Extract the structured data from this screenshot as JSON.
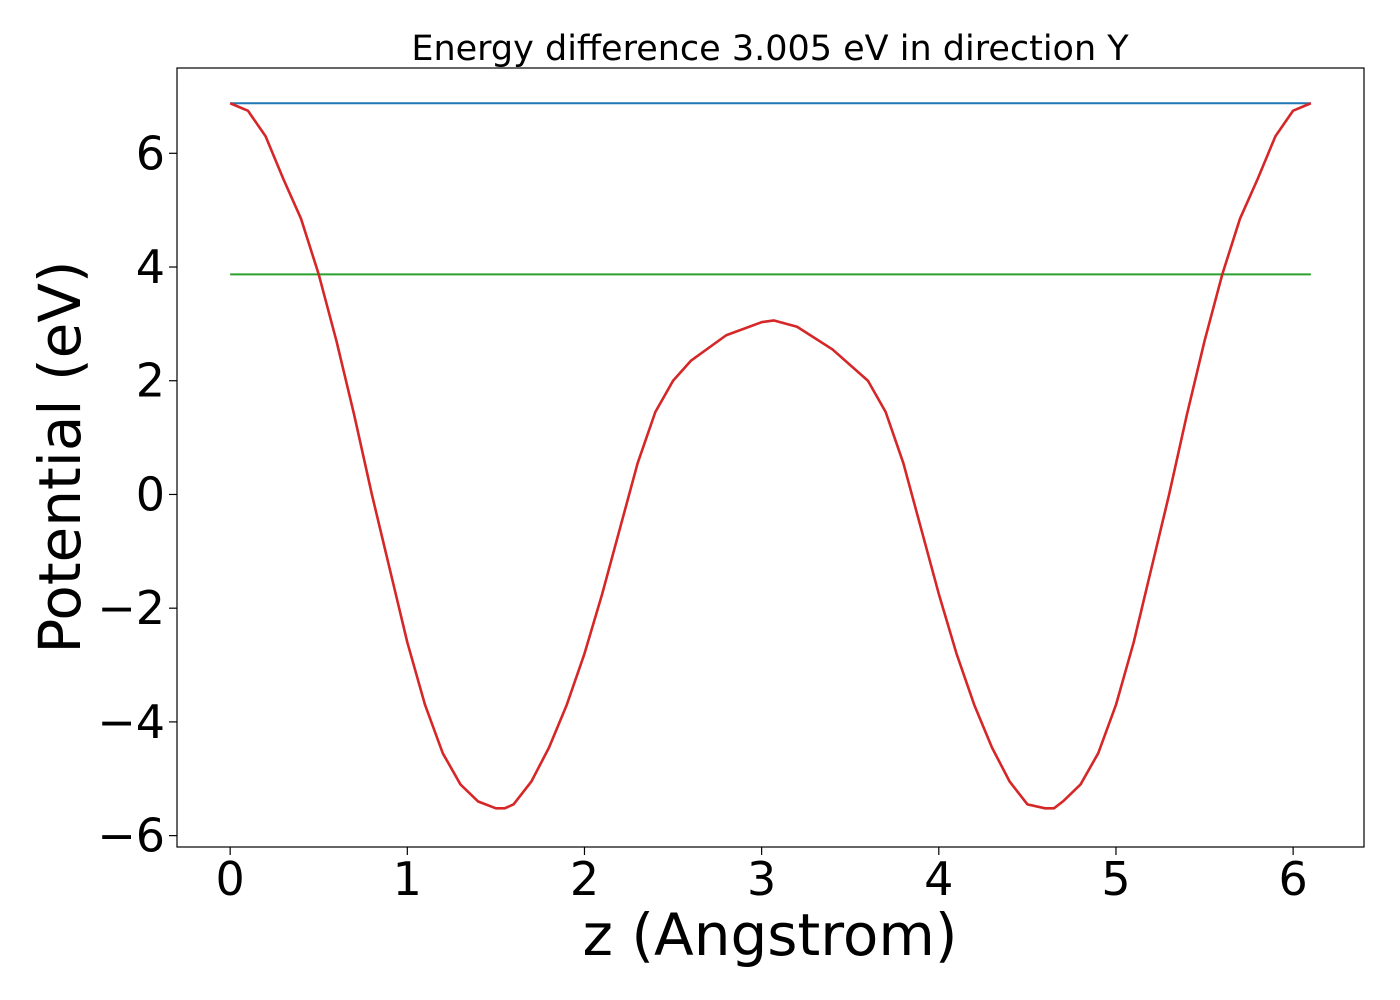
{
  "chart_data": {
    "type": "line",
    "title": "Energy difference 3.005 eV in direction Y",
    "xlabel": "z (Angstrom)",
    "ylabel": "Potential (eV)",
    "xlim": [
      -0.3,
      6.4
    ],
    "ylim": [
      -6.2,
      7.5
    ],
    "xticks": [
      0,
      1,
      2,
      3,
      4,
      5,
      6
    ],
    "xtick_labels": [
      "0",
      "1",
      "2",
      "3",
      "4",
      "5",
      "6"
    ],
    "yticks": [
      -6,
      -4,
      -2,
      0,
      2,
      4,
      6
    ],
    "ytick_labels": [
      "−6",
      "−4",
      "−2",
      "0",
      "2",
      "4",
      "6"
    ],
    "grid": false,
    "series": [
      {
        "color": "#1f77b4",
        "x": [
          0,
          6.1
        ],
        "y": [
          6.88,
          6.88
        ]
      },
      {
        "color": "#2ca02c",
        "x": [
          0,
          6.1
        ],
        "y": [
          3.87,
          3.87
        ]
      },
      {
        "color": "#d62728",
        "x": [
          0,
          0.1,
          0.2,
          0.3,
          0.4,
          0.5,
          0.6,
          0.7,
          0.8,
          0.9,
          1.0,
          1.1,
          1.2,
          1.3,
          1.4,
          1.5,
          1.55,
          1.6,
          1.7,
          1.8,
          1.9,
          2.0,
          2.1,
          2.2,
          2.3,
          2.4,
          2.5,
          2.6,
          2.8,
          3.0,
          3.07,
          3.2,
          3.4,
          3.6,
          3.7,
          3.8,
          3.9,
          4.0,
          4.1,
          4.2,
          4.3,
          4.4,
          4.5,
          4.6,
          4.65,
          4.7,
          4.8,
          4.9,
          5.0,
          5.1,
          5.2,
          5.3,
          5.4,
          5.5,
          5.6,
          5.7,
          5.8,
          5.9,
          6.0,
          6.1
        ],
        "y": [
          6.88,
          6.75,
          6.3,
          5.55,
          4.85,
          3.87,
          2.7,
          1.4,
          0.0,
          -1.3,
          -2.6,
          -3.7,
          -4.55,
          -5.1,
          -5.4,
          -5.52,
          -5.52,
          -5.45,
          -5.05,
          -4.45,
          -3.7,
          -2.8,
          -1.75,
          -0.6,
          0.55,
          1.45,
          2.0,
          2.35,
          2.8,
          3.03,
          3.06,
          2.95,
          2.55,
          2.0,
          1.45,
          0.55,
          -0.6,
          -1.75,
          -2.8,
          -3.7,
          -4.45,
          -5.05,
          -5.45,
          -5.52,
          -5.52,
          -5.4,
          -5.1,
          -4.55,
          -3.7,
          -2.6,
          -1.3,
          0.0,
          1.4,
          2.7,
          3.87,
          4.85,
          5.55,
          6.3,
          6.75,
          6.88
        ]
      }
    ]
  }
}
